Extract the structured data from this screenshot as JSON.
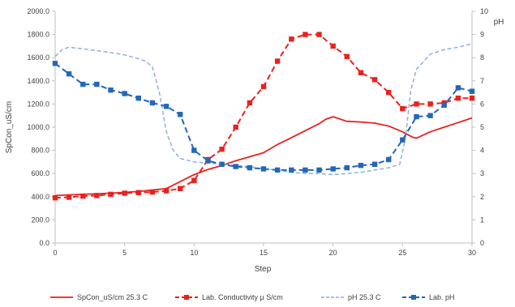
{
  "chart_data": {
    "type": "line",
    "xlabel": "Step",
    "ylabel": "SpCon_uS/cm",
    "y2label": "pH",
    "xlim": [
      0,
      30
    ],
    "ylim": [
      0,
      2000
    ],
    "y2lim": [
      0,
      10
    ],
    "x_ticks": [
      "0",
      "5",
      "10",
      "15",
      "20",
      "25",
      "30"
    ],
    "y_ticks": [
      "0.0",
      "200.0",
      "400.0",
      "600.0",
      "800.0",
      "1000.0",
      "1200.0",
      "1400.0",
      "1600.0",
      "1800.0",
      "2000.0"
    ],
    "y2_ticks": [
      "0",
      "1",
      "2",
      "3",
      "4",
      "5",
      "6",
      "7",
      "8",
      "9",
      "10"
    ],
    "grid": false,
    "legend_position": "bottom",
    "series": [
      {
        "name": "SpCon_uS/cm 25.3 C",
        "axis": "left",
        "style": "solid",
        "color": "#e8221f",
        "x": [
          0,
          2,
          4,
          6,
          8,
          9,
          10,
          11,
          12,
          13,
          14,
          15,
          16,
          17,
          18,
          19,
          19.5,
          20,
          21,
          22,
          23,
          24,
          25,
          25.7,
          26,
          27,
          28,
          29,
          30
        ],
        "values": [
          410,
          420,
          430,
          445,
          470,
          530,
          590,
          635,
          670,
          710,
          745,
          780,
          850,
          910,
          970,
          1030,
          1070,
          1090,
          1050,
          1045,
          1035,
          1010,
          960,
          915,
          905,
          960,
          1000,
          1040,
          1080
        ]
      },
      {
        "name": "Lab. Conductivity µ S/cm",
        "axis": "left",
        "style": "dashed",
        "marker": "square",
        "color": "#e8221f",
        "x": [
          0,
          1,
          2,
          3,
          4,
          5,
          6,
          7,
          8,
          9,
          10,
          11,
          12,
          13,
          14,
          15,
          16,
          17,
          18,
          19,
          20,
          21,
          22,
          23,
          24,
          25,
          26,
          27,
          28,
          29,
          30
        ],
        "values": [
          390,
          395,
          405,
          410,
          420,
          430,
          435,
          440,
          450,
          470,
          540,
          720,
          810,
          1000,
          1210,
          1350,
          1570,
          1760,
          1800,
          1800,
          1700,
          1610,
          1470,
          1410,
          1300,
          1160,
          1200,
          1200,
          1210,
          1250,
          1250
        ]
      },
      {
        "name": "pH 25.3 C",
        "axis": "right",
        "style": "dashed",
        "color": "#8faedb",
        "x": [
          0,
          0.5,
          1,
          2,
          3,
          4,
          5,
          6,
          6.5,
          7,
          7.5,
          8,
          8.5,
          9,
          10,
          11,
          12,
          13,
          14,
          15,
          16,
          17,
          18,
          19,
          20,
          21,
          22,
          23,
          24,
          24.8,
          25.2,
          25.6,
          26,
          27,
          28,
          29,
          30
        ],
        "values": [
          8.05,
          8.35,
          8.45,
          8.38,
          8.3,
          8.22,
          8.12,
          7.95,
          7.85,
          7.6,
          6.5,
          4.8,
          4.0,
          3.65,
          3.5,
          3.45,
          3.4,
          3.35,
          3.3,
          3.2,
          3.15,
          3.05,
          3.0,
          3.0,
          2.95,
          3.0,
          3.05,
          3.15,
          3.25,
          3.4,
          4.5,
          6.6,
          7.5,
          8.15,
          8.35,
          8.45,
          8.6
        ]
      },
      {
        "name": "Lab. pH",
        "axis": "right",
        "style": "dashed",
        "marker": "square",
        "color": "#2268b8",
        "x": [
          0,
          1,
          2,
          3,
          4,
          5,
          6,
          7,
          8,
          9,
          10,
          11,
          12,
          13,
          14,
          15,
          16,
          17,
          18,
          19,
          20,
          21,
          22,
          23,
          24,
          25,
          26,
          27,
          28,
          29,
          30
        ],
        "values": [
          7.75,
          7.3,
          6.85,
          6.85,
          6.6,
          6.45,
          6.25,
          6.05,
          5.9,
          5.55,
          4.0,
          3.55,
          3.4,
          3.3,
          3.25,
          3.2,
          3.15,
          3.15,
          3.15,
          3.15,
          3.2,
          3.25,
          3.35,
          3.4,
          3.6,
          4.45,
          5.45,
          5.5,
          5.95,
          6.7,
          6.55
        ]
      }
    ]
  }
}
